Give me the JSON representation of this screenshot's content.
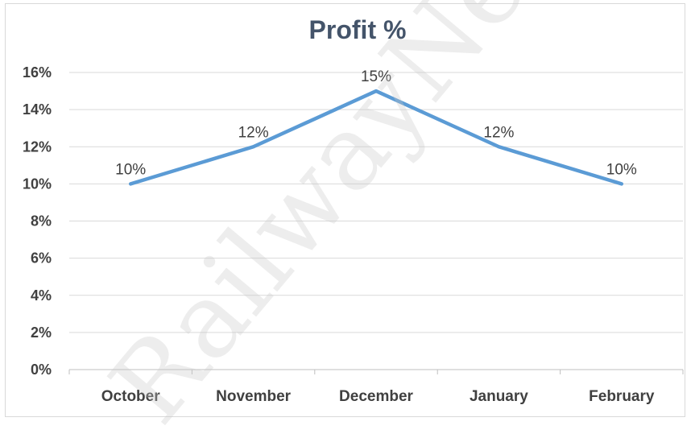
{
  "chart_data": {
    "type": "line",
    "title": "Profit %",
    "categories": [
      "October",
      "November",
      "December",
      "January",
      "February"
    ],
    "series": [
      {
        "values": [
          10,
          12,
          15,
          12,
          10
        ],
        "color": "#5b9bd5"
      }
    ],
    "data_labels": [
      "10%",
      "12%",
      "15%",
      "12%",
      "10%"
    ],
    "y_ticks": [
      "0%",
      "2%",
      "4%",
      "6%",
      "8%",
      "10%",
      "12%",
      "14%",
      "16%"
    ],
    "ylim": [
      0,
      16
    ],
    "grid": true,
    "legend": "none"
  },
  "watermark": "RailwayNe"
}
